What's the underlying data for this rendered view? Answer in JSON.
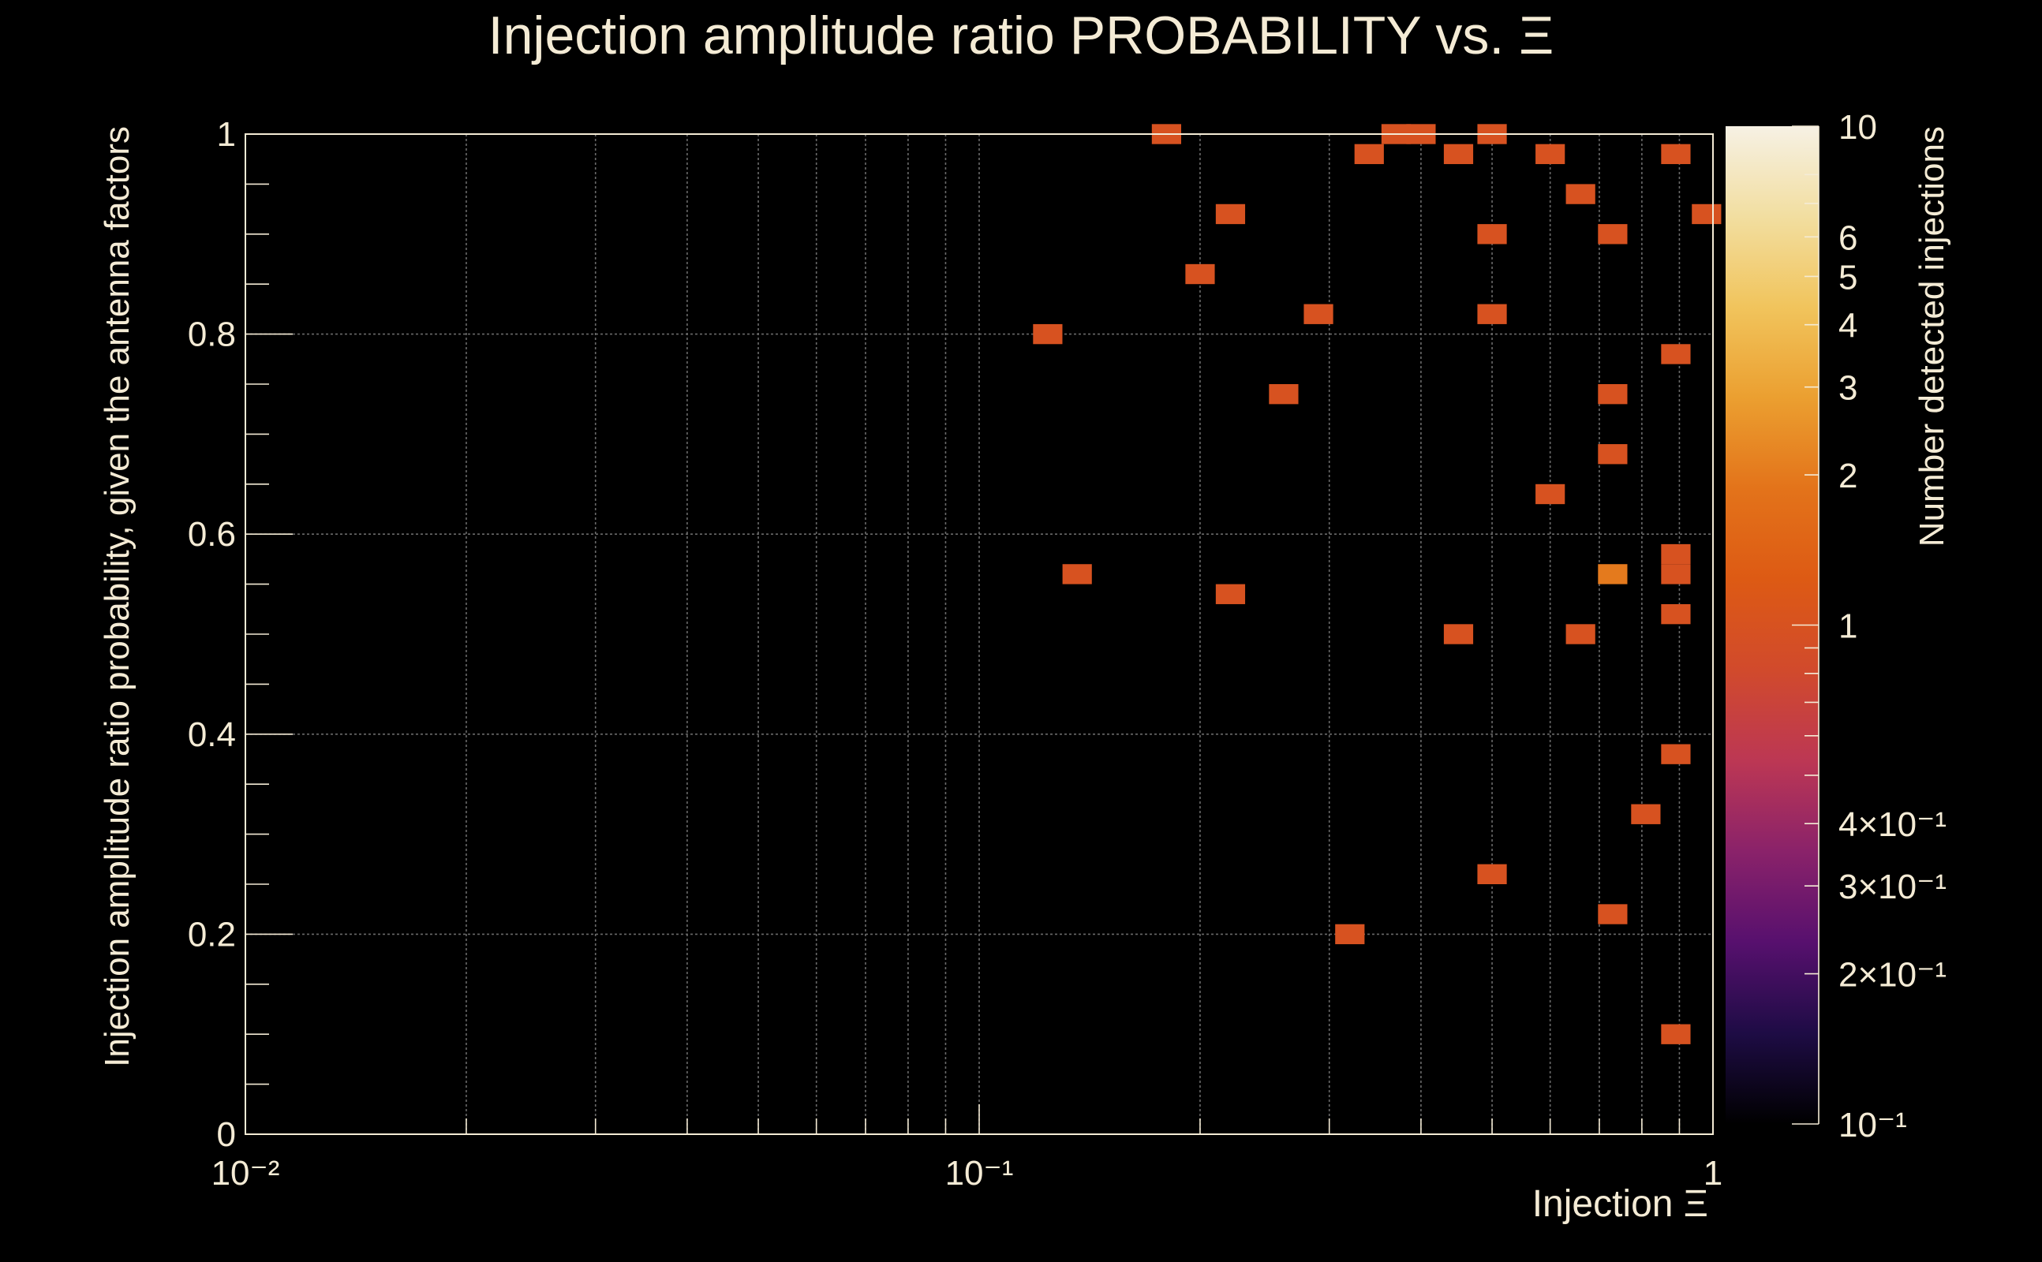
{
  "chart_data": {
    "type": "heatmap",
    "title": "Injection amplitude ratio PROBABILITY vs.  Ξ",
    "title_symbol": "Ξ",
    "xlabel": "Injection Ξ",
    "ylabel": "Injection amplitude ratio probability, given the antenna factors",
    "zlabel": "Number detected injections",
    "x_scale": "log",
    "z_scale": "log",
    "grid": true,
    "xlim": [
      0.01,
      1
    ],
    "ylim": [
      0,
      1
    ],
    "zlim": [
      0.1,
      10
    ],
    "x_ticks": [
      {
        "value": 0.01,
        "label": "10⁻²"
      },
      {
        "value": 0.1,
        "label": "10⁻¹"
      },
      {
        "value": 1,
        "label": "1"
      }
    ],
    "y_ticks": [
      {
        "value": 0,
        "label": "0"
      },
      {
        "value": 0.2,
        "label": "0.2"
      },
      {
        "value": 0.4,
        "label": "0.4"
      },
      {
        "value": 0.6,
        "label": "0.6"
      },
      {
        "value": 0.8,
        "label": "0.8"
      },
      {
        "value": 1,
        "label": "1"
      }
    ],
    "z_ticks": [
      {
        "value": 10,
        "label": "10"
      },
      {
        "value": 6,
        "label": "6"
      },
      {
        "value": 5,
        "label": "5"
      },
      {
        "value": 4,
        "label": "4"
      },
      {
        "value": 3,
        "label": "3"
      },
      {
        "value": 2,
        "label": "2"
      },
      {
        "value": 1,
        "label": "1"
      },
      {
        "value": 0.4,
        "label": "4×10⁻¹"
      },
      {
        "value": 0.3,
        "label": "3×10⁻¹"
      },
      {
        "value": 0.2,
        "label": "2×10⁻¹"
      },
      {
        "value": 0.1,
        "label": "10⁻¹"
      }
    ],
    "bin_width_log10": 0.04,
    "bin_height": 0.02,
    "colormap": [
      "#000000",
      "#1e0c45",
      "#57106e",
      "#8a226a",
      "#bc3754",
      "#d14a2c",
      "#dd5a14",
      "#e3731a",
      "#eb9f30",
      "#f1c45c",
      "#f2dea0",
      "#f6f1e4"
    ],
    "bins": [
      {
        "x": 0.18,
        "y": 1.0,
        "count": 1
      },
      {
        "x": 0.37,
        "y": 1.0,
        "count": 1
      },
      {
        "x": 0.4,
        "y": 1.0,
        "count": 1
      },
      {
        "x": 0.5,
        "y": 1.0,
        "count": 1
      },
      {
        "x": 0.34,
        "y": 0.98,
        "count": 1
      },
      {
        "x": 0.45,
        "y": 0.98,
        "count": 1
      },
      {
        "x": 0.6,
        "y": 0.98,
        "count": 1
      },
      {
        "x": 0.89,
        "y": 0.98,
        "count": 1
      },
      {
        "x": 0.66,
        "y": 0.94,
        "count": 1
      },
      {
        "x": 0.22,
        "y": 0.92,
        "count": 1
      },
      {
        "x": 0.98,
        "y": 0.92,
        "count": 1
      },
      {
        "x": 0.5,
        "y": 0.9,
        "count": 1
      },
      {
        "x": 0.73,
        "y": 0.9,
        "count": 1
      },
      {
        "x": 0.2,
        "y": 0.86,
        "count": 1
      },
      {
        "x": 0.29,
        "y": 0.82,
        "count": 1
      },
      {
        "x": 0.5,
        "y": 0.82,
        "count": 1
      },
      {
        "x": 0.124,
        "y": 0.8,
        "count": 1
      },
      {
        "x": 0.89,
        "y": 0.78,
        "count": 1
      },
      {
        "x": 0.26,
        "y": 0.74,
        "count": 1
      },
      {
        "x": 0.73,
        "y": 0.74,
        "count": 1
      },
      {
        "x": 0.73,
        "y": 0.68,
        "count": 1
      },
      {
        "x": 0.6,
        "y": 0.64,
        "count": 1
      },
      {
        "x": 0.89,
        "y": 0.58,
        "count": 1
      },
      {
        "x": 0.136,
        "y": 0.56,
        "count": 1
      },
      {
        "x": 0.73,
        "y": 0.56,
        "count": 2
      },
      {
        "x": 0.89,
        "y": 0.56,
        "count": 1
      },
      {
        "x": 0.22,
        "y": 0.54,
        "count": 1
      },
      {
        "x": 0.89,
        "y": 0.52,
        "count": 1
      },
      {
        "x": 0.45,
        "y": 0.5,
        "count": 1
      },
      {
        "x": 0.66,
        "y": 0.5,
        "count": 1
      },
      {
        "x": 0.89,
        "y": 0.38,
        "count": 1
      },
      {
        "x": 0.81,
        "y": 0.32,
        "count": 1
      },
      {
        "x": 0.5,
        "y": 0.26,
        "count": 1
      },
      {
        "x": 0.73,
        "y": 0.22,
        "count": 1
      },
      {
        "x": 0.32,
        "y": 0.2,
        "count": 1
      },
      {
        "x": 0.89,
        "y": 0.1,
        "count": 1
      }
    ]
  }
}
